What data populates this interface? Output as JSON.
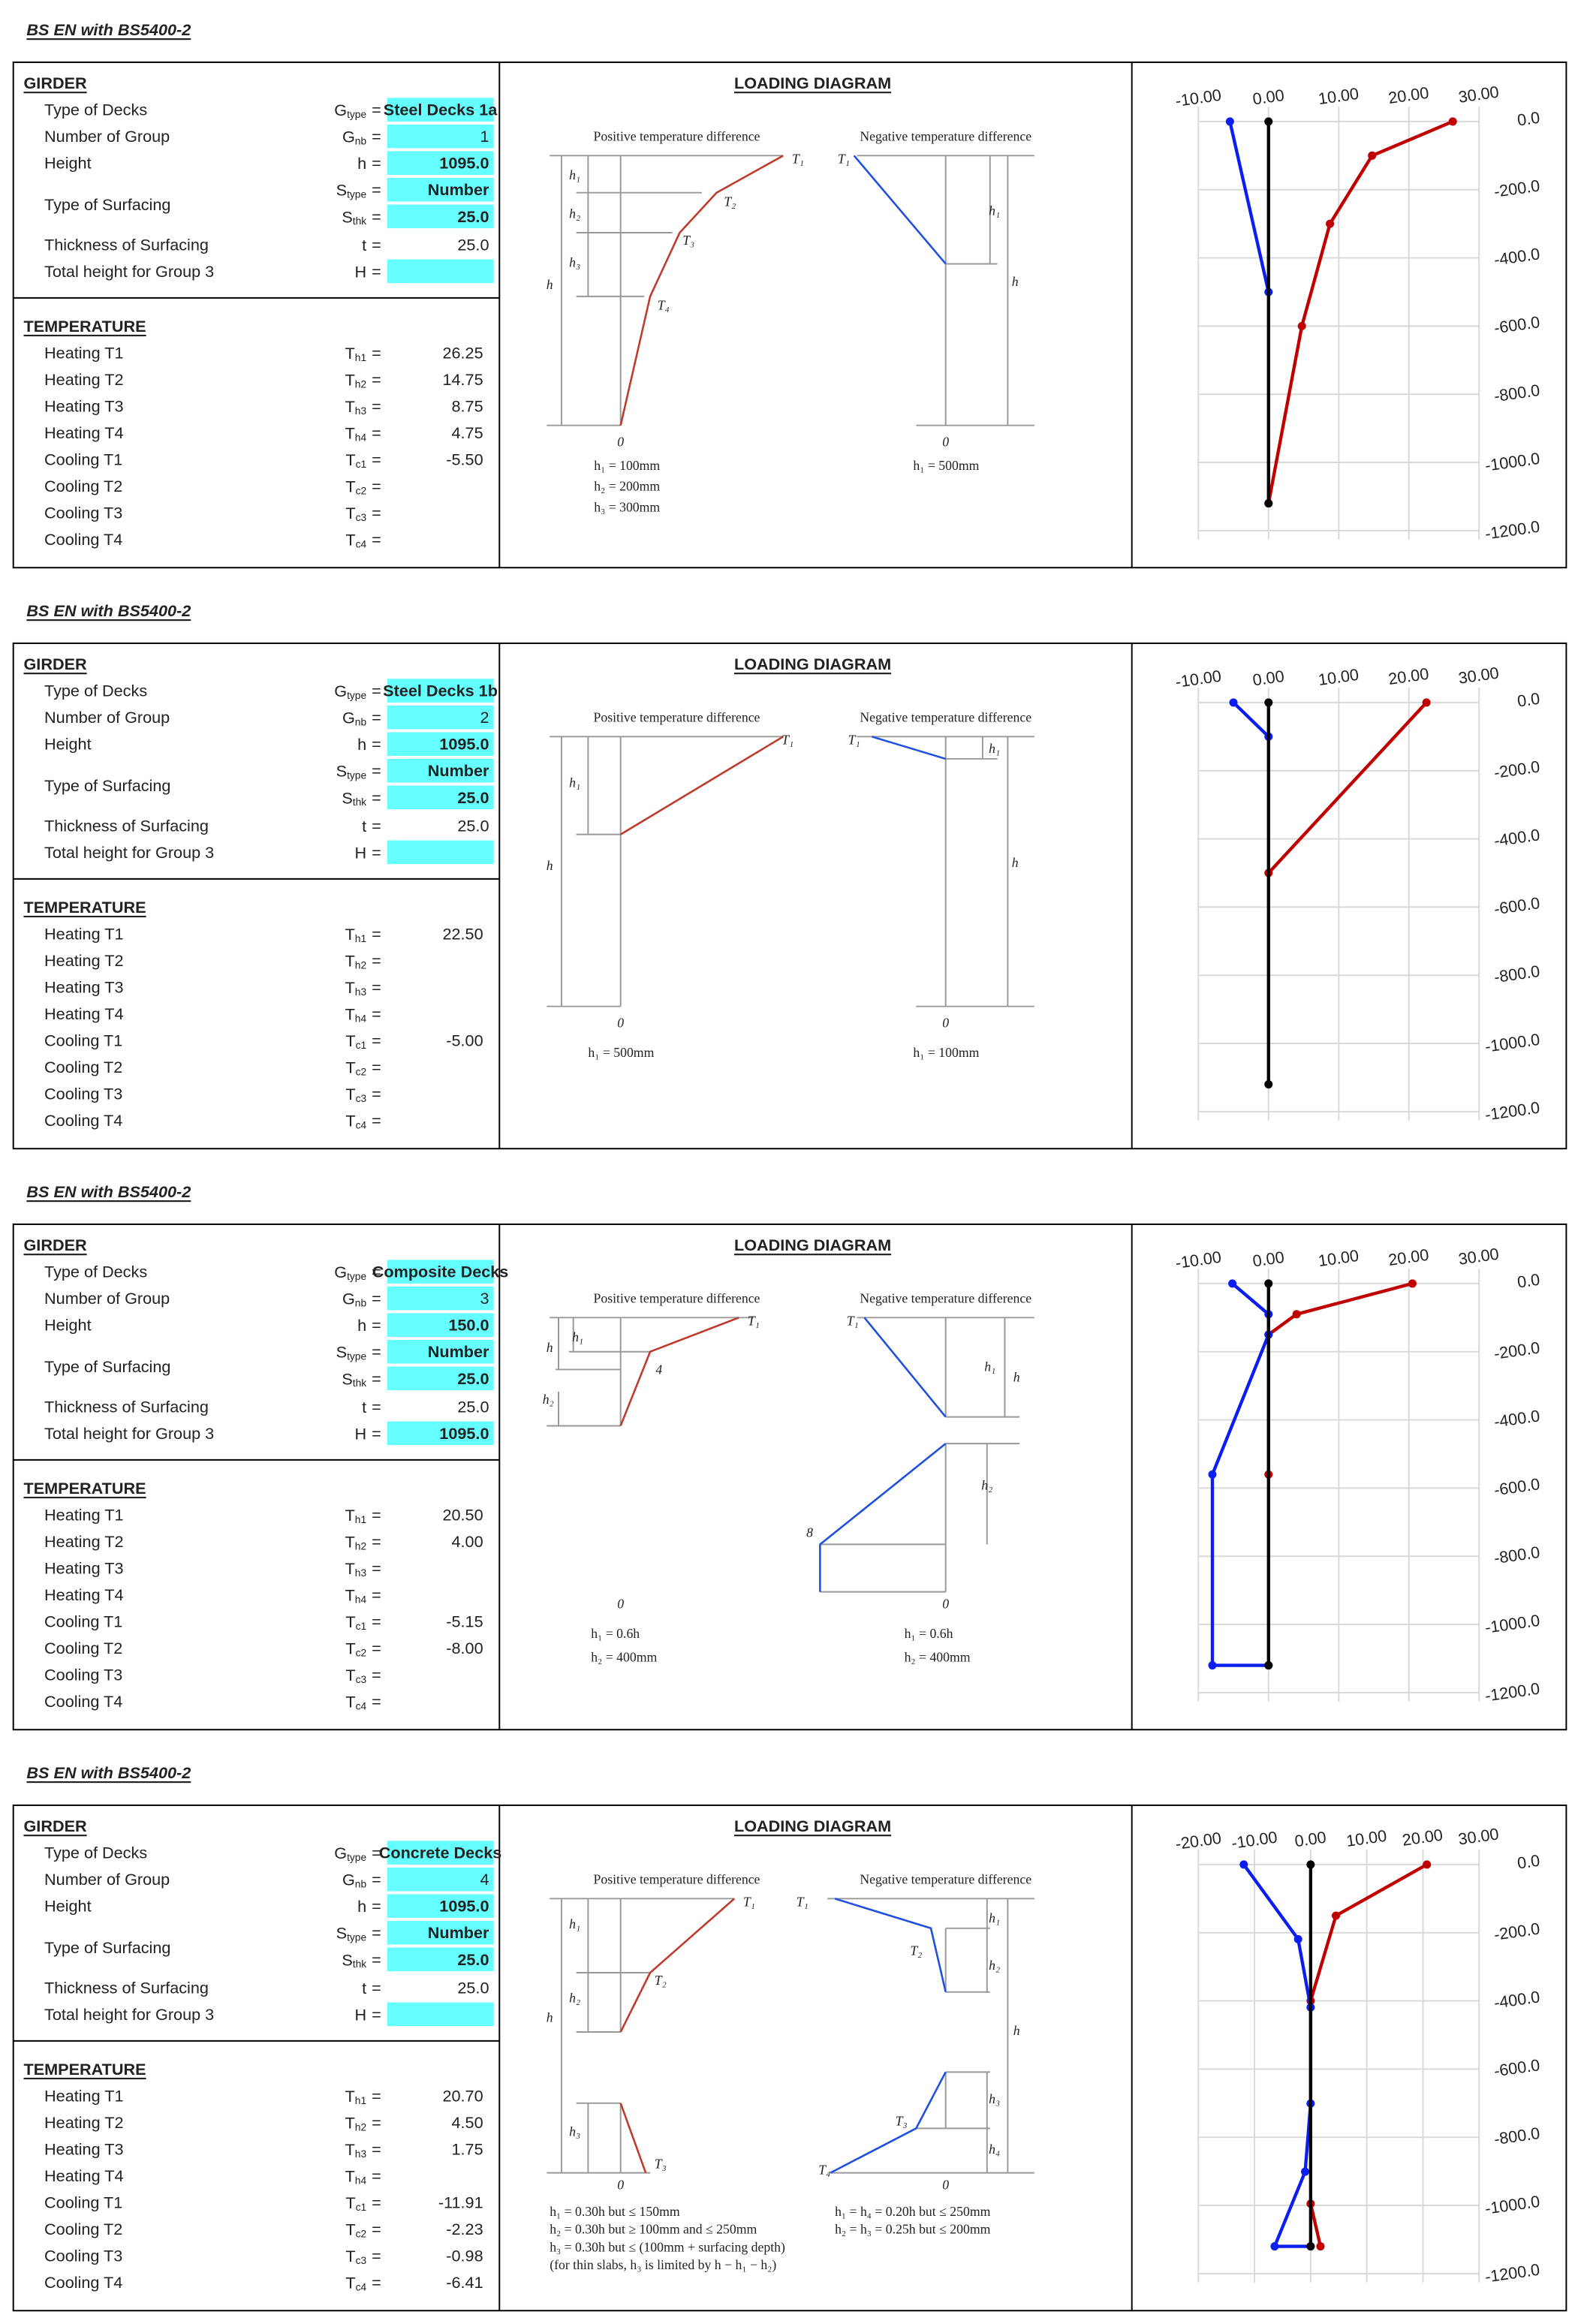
{
  "equals": "=",
  "sheets": [
    {
      "title": "BS EN with BS5400-2",
      "girder": {
        "heading": "GIRDER",
        "rows": [
          {
            "label": "Type of Decks",
            "symbol": "G",
            "sub": "type",
            "value": "Steel Decks 1a"
          },
          {
            "label": "Number of Group",
            "symbol": "G",
            "sub": "nb",
            "value": "1"
          },
          {
            "label": "Height",
            "symbol": "h",
            "value": "1095.0"
          },
          {
            "label": "Type of Surfacing",
            "symbol": "S",
            "sub": "type",
            "value": "Number"
          },
          {
            "symbol": "S",
            "sub": "thk",
            "value": "25.0"
          },
          {
            "label": "Thickness of Surfacing",
            "symbol": "t",
            "value": "25.0"
          },
          {
            "label": "Total height for Group 3",
            "symbol": "H"
          }
        ]
      },
      "temperature": {
        "heading": "TEMPERATURE",
        "rows": [
          {
            "label": "Heating T1",
            "symbol": "T",
            "sub": "h1",
            "value": "26.25"
          },
          {
            "label": "Heating T2",
            "symbol": "T",
            "sub": "h2",
            "value": "14.75"
          },
          {
            "label": "Heating T3",
            "symbol": "T",
            "sub": "h3",
            "value": "8.75"
          },
          {
            "label": "Heating T4",
            "symbol": "T",
            "sub": "h4",
            "value": "4.75"
          },
          {
            "label": "Cooling T1",
            "symbol": "T",
            "sub": "c1",
            "value": "-5.50"
          },
          {
            "label": "Cooling T2",
            "symbol": "T",
            "sub": "c2"
          },
          {
            "label": "Cooling T3",
            "symbol": "T",
            "sub": "c3"
          },
          {
            "label": "Cooling T4",
            "symbol": "T",
            "sub": "c4"
          }
        ]
      },
      "diagram": {
        "heading": "LOADING DIAGRAM",
        "positive": "Positive temperature difference",
        "negative": "Negative temperature difference",
        "labels": [
          "T₁",
          "T₂",
          "T₃",
          "T₄",
          "h₁",
          "h₂",
          "h₃",
          "h",
          "0",
          "T₁",
          "h₁",
          "h",
          "0"
        ],
        "notes_left": [
          "h₁ = 100mm",
          "h₂ = 200mm",
          "h₃ = 300mm"
        ],
        "notes_right": [
          "h₁ = 500mm"
        ]
      },
      "chart_data": {
        "type": "line",
        "xlim": [
          -10,
          30
        ],
        "xticks": [
          {
            "value": -10,
            "label": "-10.00"
          },
          {
            "value": 0,
            "label": "0.00"
          },
          {
            "value": 10,
            "label": "10.00"
          },
          {
            "value": 20,
            "label": "20.00"
          },
          {
            "value": 30,
            "label": "30.00"
          }
        ],
        "ylim": [
          -1200,
          0
        ],
        "yticks": [
          {
            "value": 0,
            "label": "0.0"
          },
          {
            "value": -200,
            "label": "-200.0"
          },
          {
            "value": -400,
            "label": "-400.0"
          },
          {
            "value": -600,
            "label": "-600.0"
          },
          {
            "value": -800,
            "label": "-800.0"
          },
          {
            "value": -1000,
            "label": "-1000.0"
          },
          {
            "value": -1200,
            "label": "-1200.0"
          }
        ],
        "series": [
          {
            "color": "#c00000",
            "x": [
              26.25,
              14.75,
              8.75,
              4.75,
              0
            ],
            "values": [
              0,
              -100,
              -300,
              -600,
              -1120
            ]
          },
          {
            "color": "#0a1ef0",
            "x": [
              -5.5,
              0
            ],
            "values": [
              0,
              -500
            ]
          },
          {
            "color": "#000000",
            "x": [
              0,
              0
            ],
            "values": [
              0,
              -1120
            ]
          }
        ]
      }
    },
    {
      "title": "BS EN with BS5400-2",
      "girder": {
        "heading": "GIRDER",
        "rows": [
          {
            "label": "Type of Decks",
            "symbol": "G",
            "sub": "type",
            "value": "Steel Decks 1b"
          },
          {
            "label": "Number of Group",
            "symbol": "G",
            "sub": "nb",
            "value": "2"
          },
          {
            "label": "Height",
            "symbol": "h",
            "value": "1095.0"
          },
          {
            "label": "Type of Surfacing",
            "symbol": "S",
            "sub": "type",
            "value": "Number"
          },
          {
            "symbol": "S",
            "sub": "thk",
            "value": "25.0"
          },
          {
            "label": "Thickness of Surfacing",
            "symbol": "t",
            "value": "25.0"
          },
          {
            "label": "Total height for Group 3",
            "symbol": "H"
          }
        ]
      },
      "temperature": {
        "heading": "TEMPERATURE",
        "rows": [
          {
            "label": "Heating T1",
            "symbol": "T",
            "sub": "h1",
            "value": "22.50"
          },
          {
            "label": "Heating T2",
            "symbol": "T",
            "sub": "h2"
          },
          {
            "label": "Heating T3",
            "symbol": "T",
            "sub": "h3"
          },
          {
            "label": "Heating T4",
            "symbol": "T",
            "sub": "h4"
          },
          {
            "label": "Cooling T1",
            "symbol": "T",
            "sub": "c1",
            "value": "-5.00"
          },
          {
            "label": "Cooling T2",
            "symbol": "T",
            "sub": "c2"
          },
          {
            "label": "Cooling T3",
            "symbol": "T",
            "sub": "c3"
          },
          {
            "label": "Cooling T4",
            "symbol": "T",
            "sub": "c4"
          }
        ]
      },
      "diagram": {
        "heading": "LOADING DIAGRAM",
        "positive": "Positive temperature difference",
        "negative": "Negative temperature difference",
        "labels": [
          "T₁",
          "h₁",
          "h",
          "0",
          "T₁",
          "h₁",
          "h",
          "0"
        ],
        "notes_left": [
          "h₁ = 500mm"
        ],
        "notes_right": [
          "h₁ = 100mm"
        ]
      },
      "chart_data": {
        "type": "line",
        "xlim": [
          -10,
          30
        ],
        "xticks": [
          {
            "value": -10,
            "label": "-10.00"
          },
          {
            "value": 0,
            "label": "0.00"
          },
          {
            "value": 10,
            "label": "10.00"
          },
          {
            "value": 20,
            "label": "20.00"
          },
          {
            "value": 30,
            "label": "30.00"
          }
        ],
        "ylim": [
          -1200,
          0
        ],
        "yticks": [
          {
            "value": 0,
            "label": "0.0"
          },
          {
            "value": -200,
            "label": "-200.0"
          },
          {
            "value": -400,
            "label": "-400.0"
          },
          {
            "value": -600,
            "label": "-600.0"
          },
          {
            "value": -800,
            "label": "-800.0"
          },
          {
            "value": -1000,
            "label": "-1000.0"
          },
          {
            "value": -1200,
            "label": "-1200.0"
          }
        ],
        "series": [
          {
            "color": "#c00000",
            "x": [
              22.5,
              0
            ],
            "values": [
              0,
              -500
            ]
          },
          {
            "color": "#0a1ef0",
            "x": [
              -5,
              0
            ],
            "values": [
              0,
              -100
            ]
          },
          {
            "color": "#000000",
            "x": [
              0,
              0
            ],
            "values": [
              0,
              -1120
            ]
          }
        ]
      }
    },
    {
      "title": "BS EN with BS5400-2",
      "girder": {
        "heading": "GIRDER",
        "rows": [
          {
            "label": "Type of Decks",
            "symbol": "G",
            "sub": "type",
            "value": "Composite Decks"
          },
          {
            "label": "Number of Group",
            "symbol": "G",
            "sub": "nb",
            "value": "3"
          },
          {
            "label": "Height",
            "symbol": "h",
            "value": "150.0"
          },
          {
            "label": "Type of Surfacing",
            "symbol": "S",
            "sub": "type",
            "value": "Number"
          },
          {
            "symbol": "S",
            "sub": "thk",
            "value": "25.0"
          },
          {
            "label": "Thickness of Surfacing",
            "symbol": "t",
            "value": "25.0"
          },
          {
            "label": "Total height for Group 3",
            "symbol": "H",
            "value": "1095.0"
          }
        ]
      },
      "temperature": {
        "heading": "TEMPERATURE",
        "rows": [
          {
            "label": "Heating T1",
            "symbol": "T",
            "sub": "h1",
            "value": "20.50"
          },
          {
            "label": "Heating T2",
            "symbol": "T",
            "sub": "h2",
            "value": "4.00"
          },
          {
            "label": "Heating T3",
            "symbol": "T",
            "sub": "h3"
          },
          {
            "label": "Heating T4",
            "symbol": "T",
            "sub": "h4"
          },
          {
            "label": "Cooling T1",
            "symbol": "T",
            "sub": "c1",
            "value": "-5.15"
          },
          {
            "label": "Cooling T2",
            "symbol": "T",
            "sub": "c2",
            "value": "-8.00"
          },
          {
            "label": "Cooling T3",
            "symbol": "T",
            "sub": "c3"
          },
          {
            "label": "Cooling T4",
            "symbol": "T",
            "sub": "c4"
          }
        ]
      },
      "diagram": {
        "heading": "LOADING DIAGRAM",
        "positive": "Positive temperature difference",
        "negative": "Negative temperature difference",
        "labels": [
          "T₁",
          "4",
          "h₁",
          "h",
          "h₂",
          "0",
          "T₁",
          "h₁",
          "h",
          "h₂",
          "8",
          "0"
        ],
        "notes_left": [
          "h₁ = 0.6h",
          "h₂ = 400mm"
        ],
        "notes_right": [
          "h₁ = 0.6h",
          "h₂ = 400mm"
        ]
      },
      "chart_data": {
        "type": "line",
        "xlim": [
          -10,
          30
        ],
        "xticks": [
          {
            "value": -10,
            "label": "-10.00"
          },
          {
            "value": 0,
            "label": "0.00"
          },
          {
            "value": 10,
            "label": "10.00"
          },
          {
            "value": 20,
            "label": "20.00"
          },
          {
            "value": 30,
            "label": "30.00"
          }
        ],
        "ylim": [
          -1200,
          0
        ],
        "yticks": [
          {
            "value": 0,
            "label": "0.0"
          },
          {
            "value": -200,
            "label": "-200.0"
          },
          {
            "value": -400,
            "label": "-400.0"
          },
          {
            "value": -600,
            "label": "-600.0"
          },
          {
            "value": -800,
            "label": "-800.0"
          },
          {
            "value": -1000,
            "label": "-1000.0"
          },
          {
            "value": -1200,
            "label": "-1200.0"
          }
        ],
        "series": [
          {
            "color": "#c00000",
            "x": [
              20.5,
              4,
              0,
              0
            ],
            "values": [
              0,
              -90,
              -150,
              -560
            ]
          },
          {
            "color": "#0a1ef0",
            "x": [
              -5.15,
              0,
              0,
              -8,
              -8,
              0
            ],
            "values": [
              0,
              -90,
              -150,
              -560,
              -1120,
              -1120
            ]
          },
          {
            "color": "#000000",
            "x": [
              0,
              0
            ],
            "values": [
              0,
              -1120
            ]
          }
        ]
      }
    },
    {
      "title": "BS EN with BS5400-2",
      "girder": {
        "heading": "GIRDER",
        "rows": [
          {
            "label": "Type of Decks",
            "symbol": "G",
            "sub": "type",
            "value": "Concrete Decks"
          },
          {
            "label": "Number of Group",
            "symbol": "G",
            "sub": "nb",
            "value": "4"
          },
          {
            "label": "Height",
            "symbol": "h",
            "value": "1095.0"
          },
          {
            "label": "Type of Surfacing",
            "symbol": "S",
            "sub": "type",
            "value": "Number"
          },
          {
            "symbol": "S",
            "sub": "thk",
            "value": "25.0"
          },
          {
            "label": "Thickness of Surfacing",
            "symbol": "t",
            "value": "25.0"
          },
          {
            "label": "Total height for Group 3",
            "symbol": "H"
          }
        ]
      },
      "temperature": {
        "heading": "TEMPERATURE",
        "rows": [
          {
            "label": "Heating T1",
            "symbol": "T",
            "sub": "h1",
            "value": "20.70"
          },
          {
            "label": "Heating T2",
            "symbol": "T",
            "sub": "h2",
            "value": "4.50"
          },
          {
            "label": "Heating T3",
            "symbol": "T",
            "sub": "h3",
            "value": "1.75"
          },
          {
            "label": "Heating T4",
            "symbol": "T",
            "sub": "h4"
          },
          {
            "label": "Cooling T1",
            "symbol": "T",
            "sub": "c1",
            "value": "-11.91"
          },
          {
            "label": "Cooling T2",
            "symbol": "T",
            "sub": "c2",
            "value": "-2.23"
          },
          {
            "label": "Cooling T3",
            "symbol": "T",
            "sub": "c3",
            "value": "-0.98"
          },
          {
            "label": "Cooling T4",
            "symbol": "T",
            "sub": "c4",
            "value": "-6.41"
          }
        ]
      },
      "diagram": {
        "heading": "LOADING DIAGRAM",
        "positive": "Positive temperature difference",
        "negative": "Negative temperature difference",
        "labels": [
          "T₁",
          "T₂",
          "h₁",
          "h₂",
          "h₃",
          "h",
          "T₃",
          "0",
          "T₁",
          "T₂",
          "h₁",
          "h₂",
          "h",
          "h₃",
          "T₃",
          "h₄",
          "T₄",
          "0"
        ],
        "notes_left": [
          "h₁ = 0.30h   but ≤ 150mm",
          "h₂ = 0.30h   but ≥ 100mm and ≤ 250mm",
          "h₃ = 0.30h   but ≤ (100mm + surfacing depth)",
          "(for thin slabs, h₃ is limited by h − h₁ − h₂)"
        ],
        "notes_right": [
          "h₁ = h₄ = 0.20h   but ≤ 250mm",
          "h₂ = h₃ = 0.25h   but ≤ 200mm"
        ]
      },
      "chart_data": {
        "type": "line",
        "xlim": [
          -20,
          30
        ],
        "xticks": [
          {
            "value": -20,
            "label": "-20.00"
          },
          {
            "value": -10,
            "label": "-10.00"
          },
          {
            "value": 0,
            "label": "0.00"
          },
          {
            "value": 10,
            "label": "10.00"
          },
          {
            "value": 20,
            "label": "20.00"
          },
          {
            "value": 30,
            "label": "30.00"
          }
        ],
        "ylim": [
          -1200,
          0
        ],
        "yticks": [
          {
            "value": 0,
            "label": "0.0"
          },
          {
            "value": -200,
            "label": "-200.0"
          },
          {
            "value": -400,
            "label": "-400.0"
          },
          {
            "value": -600,
            "label": "-600.0"
          },
          {
            "value": -800,
            "label": "-800.0"
          },
          {
            "value": -1000,
            "label": "-1000.0"
          },
          {
            "value": -1200,
            "label": "-1200.0"
          }
        ],
        "series": [
          {
            "color": "#c00000",
            "x": [
              20.7,
              4.5,
              0,
              null,
              0,
              1.75
            ],
            "values": [
              0,
              -150,
              -400,
              null,
              -995,
              -1120
            ]
          },
          {
            "color": "#0a1ef0",
            "x": [
              -11.91,
              -2.23,
              0,
              0,
              -0.98,
              -6.41,
              0
            ],
            "values": [
              0,
              -219,
              -419,
              -701,
              -901,
              -1120,
              -1120
            ]
          },
          {
            "color": "#000000",
            "x": [
              0,
              0
            ],
            "values": [
              0,
              -1120
            ]
          }
        ]
      }
    }
  ]
}
